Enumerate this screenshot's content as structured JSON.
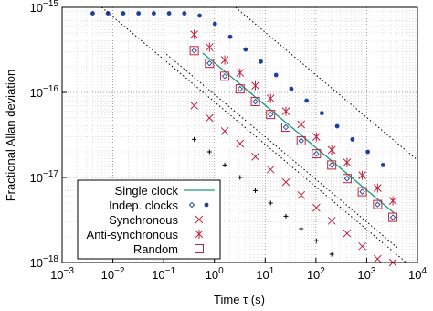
{
  "chart_data": {
    "type": "scatter",
    "xlabel": "Time τ (s)",
    "ylabel": "Fractional Allan deviation",
    "xscale": "log",
    "yscale": "log",
    "xlim": [
      0.001,
      10000
    ],
    "ylim": [
      1e-18,
      1e-15
    ],
    "xticks": [
      {
        "value": 0.001,
        "label": "10−3"
      },
      {
        "value": 0.01,
        "label": "10−2"
      },
      {
        "value": 0.1,
        "label": "10−1"
      },
      {
        "value": 1,
        "label": "100"
      },
      {
        "value": 10,
        "label": "101"
      },
      {
        "value": 100,
        "label": "102"
      },
      {
        "value": 1000,
        "label": "103"
      },
      {
        "value": 10000,
        "label": "104"
      }
    ],
    "yticks": [
      {
        "value": 1e-18,
        "label": "10−18"
      },
      {
        "value": 1e-17,
        "label": "10−17"
      },
      {
        "value": 1e-16,
        "label": "10−16"
      },
      {
        "value": 1e-15,
        "label": "10−15"
      }
    ],
    "grid": true,
    "minor_grid": true,
    "legend": "lower left",
    "series": [
      {
        "name": "Single clock",
        "kind": "line",
        "color": "#1a9a7a",
        "x": [
          0.59,
          3500
        ],
        "values": [
          2.9e-16,
          3.8e-18
        ]
      },
      {
        "name": "Indep. clocks",
        "kind": "points",
        "marker": [
          "diamond",
          "dot"
        ],
        "color": "#1f3f9f",
        "x": [
          0.4,
          0.8,
          1.6,
          3.2,
          6.4,
          12.8,
          25.6,
          51.2,
          102,
          205,
          410,
          819,
          1638,
          3277
        ],
        "values": [
          3.1e-16,
          2.2e-16,
          1.55e-16,
          1.1e-16,
          7.8e-17,
          5.5e-17,
          3.9e-17,
          2.7e-17,
          1.9e-17,
          1.4e-17,
          9.7e-18,
          6.8e-18,
          4.8e-18,
          3.4e-18
        ]
      },
      {
        "kind": "points",
        "marker": [
          "dot"
        ],
        "color": "#1f3f9f",
        "x": [
          0.004,
          0.008,
          0.016,
          0.032,
          0.064,
          0.128,
          0.256,
          0.512,
          1.024,
          2.048,
          4.096,
          8.19,
          16.4,
          32.8,
          65.5,
          131,
          262,
          524,
          1049,
          2097
        ],
        "values": [
          8.5e-16,
          8.5e-16,
          8.5e-16,
          8.5e-16,
          8.5e-16,
          8.5e-16,
          8.5e-16,
          8e-16,
          6.4e-16,
          4.5e-16,
          3.2e-16,
          2.3e-16,
          1.6e-16,
          1.1e-16,
          8e-17,
          5.7e-17,
          4e-17,
          2.8e-17,
          2e-17,
          1.4e-17
        ]
      },
      {
        "name": "Synchronous",
        "kind": "points",
        "marker": [
          "x"
        ],
        "color": "#c0223b",
        "x": [
          0.4,
          0.8,
          1.6,
          3.2,
          6.4,
          12.8,
          25.6,
          51.2,
          102,
          205,
          410,
          819,
          1638,
          3277
        ],
        "values": [
          7e-17,
          5e-17,
          3.5e-17,
          2.5e-17,
          1.75e-17,
          1.24e-17,
          8.8e-18,
          6.2e-18,
          4.4e-18,
          3.1e-18,
          2.2e-18,
          1.55e-18,
          1.1e-18,
          1e-18
        ]
      },
      {
        "name": "Anti-synchronous",
        "kind": "points",
        "marker": [
          "asterisk"
        ],
        "color": "#c0223b",
        "x": [
          0.4,
          0.8,
          1.6,
          3.2,
          6.4,
          12.8,
          25.6,
          51.2,
          102,
          205,
          410,
          819,
          1638,
          3277
        ],
        "values": [
          4.8e-16,
          3.4e-16,
          2.4e-16,
          1.7e-16,
          1.2e-16,
          8.5e-17,
          6e-17,
          4.2e-17,
          3e-17,
          2.1e-17,
          1.5e-17,
          1.06e-17,
          7.5e-18,
          5.3e-18
        ]
      },
      {
        "name": "Random",
        "kind": "points",
        "marker": [
          "square"
        ],
        "color": "#c0223b",
        "x": [
          0.4,
          0.8,
          1.6,
          3.2,
          6.4,
          12.8,
          25.6,
          51.2,
          102,
          205,
          410,
          819,
          1638,
          3277
        ],
        "values": [
          3.1e-16,
          2.2e-16,
          1.55e-16,
          1.1e-16,
          7.8e-17,
          5.5e-17,
          3.9e-17,
          2.7e-17,
          1.9e-17,
          1.4e-17,
          9.7e-18,
          6.8e-18,
          4.8e-18,
          3.4e-18
        ]
      },
      {
        "kind": "points",
        "marker": [
          "plus"
        ],
        "color": "#000000",
        "x": [
          0.4,
          0.8,
          1.6,
          3.2,
          6.4,
          12.8,
          25.6,
          51.2,
          102,
          205
        ],
        "values": [
          2.8e-17,
          2e-17,
          1.4e-17,
          1e-17,
          7e-18,
          5e-18,
          3.5e-18,
          2.5e-18,
          1.8e-18,
          1.25e-18
        ]
      },
      {
        "kind": "dotted",
        "color": "#000000",
        "x": [
          2.6,
          10000
        ],
        "values": [
          1e-15,
          1.6e-17
        ]
      },
      {
        "kind": "dotted",
        "color": "#000000",
        "x": [
          0.006,
          6000
        ],
        "values": [
          1e-15,
          1e-18
        ]
      },
      {
        "kind": "dotted",
        "color": "#000000",
        "x": [
          0.1,
          4000
        ],
        "values": [
          3e-16,
          1.5e-18
        ]
      }
    ]
  }
}
